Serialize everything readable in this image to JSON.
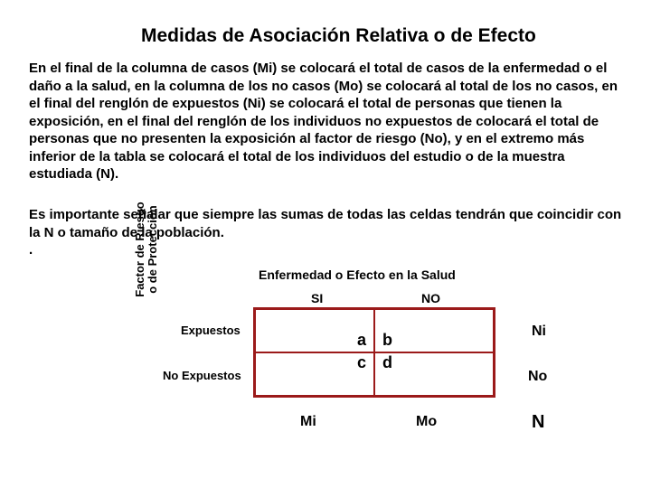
{
  "title": "Medidas de Asociación Relativa o de Efecto",
  "paragraph1": "En el final de la columna de casos (Mi) se colocará el total de casos de la enfermedad o el daño a la salud, en la columna de los no casos (Mo) se colocará al total de los no casos, en el final del renglón de expuestos (Ni) se colocará el total de personas que tienen la exposición, en el final del renglón de los individuos no expuestos de colocará el total de personas que no presenten la exposición al factor de riesgo (No), y en el extremo más inferior de la tabla se colocará el total de los individuos del estudio o de la muestra estudiada (N).",
  "paragraph2": "Es importante señalar que siempre las sumas de todas las celdas tendrán que coincidir con la N o tamaño de la población.",
  "dot": ".",
  "diagram": {
    "top_header": "Enfermedad o Efecto en la Salud",
    "col_yes": "SI",
    "col_no": "NO",
    "side_label_line1": "Factor de Riesgo",
    "side_label_line2": "o de Protección",
    "row_exposed": "Expuestos",
    "row_not_exposed": "No Expuestos",
    "cells": {
      "a": "a",
      "b": "b",
      "c": "c",
      "d": "d"
    },
    "margins": {
      "ni": "Ni",
      "no": "No",
      "mi": "Mi",
      "mo": "Mo",
      "n": "N"
    },
    "border_color": "#9b1a1a"
  }
}
